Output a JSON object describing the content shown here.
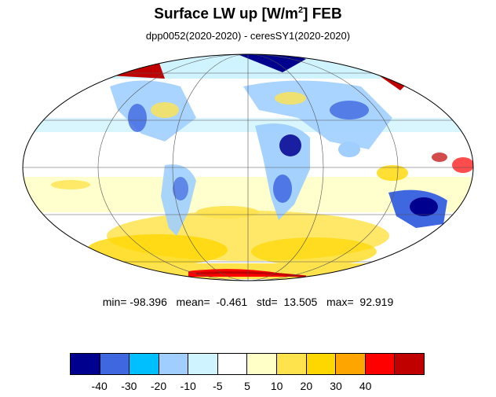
{
  "title": {
    "main": "Surface LW up [W/m",
    "sup": "2",
    "tail": "]  FEB"
  },
  "subtitle": "dpp0052(2020-2020) - ceresSY1(2020-2020)",
  "stats": {
    "text": "min= -98.396   mean=  -0.461   std=  13.505   max=  92.919"
  },
  "colorbar": {
    "colors": [
      "#00008f",
      "#3f67e0",
      "#00bfff",
      "#a0cfff",
      "#d0f4ff",
      "#ffffff",
      "#ffffc8",
      "#ffe34d",
      "#ffd700",
      "#ffa500",
      "#ff0000",
      "#c00000"
    ],
    "labels": [
      "-40",
      "-30",
      "-20",
      "-10",
      "-5",
      "5",
      "10",
      "20",
      "30",
      "40"
    ]
  },
  "colors": {
    "ocean_bg": "#ffffff",
    "grid": "#555555"
  }
}
